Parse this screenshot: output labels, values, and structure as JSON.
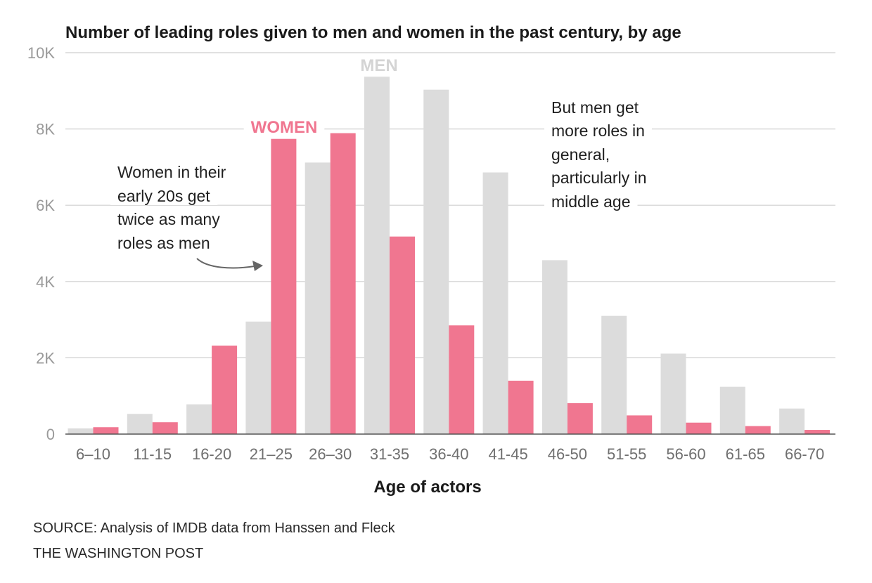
{
  "colors": {
    "men": "#dcdcdc",
    "women": "#f07690",
    "grid": "#cfcfcf",
    "men_label": "#d4d4d4",
    "women_label": "#f07690"
  },
  "footer": {
    "source": "SOURCE: Analysis of IMDB data from Hanssen and Fleck",
    "credit": "THE WASHINGTON POST"
  },
  "chart_data": {
    "type": "bar",
    "title": "Number of leading roles given to men and women in the past century, by age",
    "xlabel": "Age of actors",
    "ylabel": "",
    "ylim": [
      0,
      10000
    ],
    "yticks": [
      {
        "value": 0,
        "label": "0"
      },
      {
        "value": 2000,
        "label": "2K"
      },
      {
        "value": 4000,
        "label": "4K"
      },
      {
        "value": 6000,
        "label": "6K"
      },
      {
        "value": 8000,
        "label": "8K"
      },
      {
        "value": 10000,
        "label": "10K"
      }
    ],
    "grid": true,
    "categories": [
      "6–10",
      "11-15",
      "16-20",
      "21–25",
      "26–30",
      "31-35",
      "36-40",
      "41-45",
      "46-50",
      "51-55",
      "56-60",
      "61-65",
      "66-70"
    ],
    "series": [
      {
        "name": "MEN",
        "values": [
          150,
          530,
          780,
          2950,
          7120,
          9370,
          9030,
          6860,
          4560,
          3100,
          2110,
          1240,
          670
        ]
      },
      {
        "name": "WOMEN",
        "values": [
          180,
          310,
          2320,
          7740,
          7890,
          5180,
          2850,
          1400,
          810,
          490,
          300,
          210,
          110
        ]
      }
    ],
    "annotations": [
      {
        "id": "women-note",
        "lines": [
          "Women in their",
          "early 20s get",
          "twice as many",
          "roles as men"
        ]
      },
      {
        "id": "men-note",
        "lines": [
          "But men get",
          "more roles in",
          "general,",
          "particularly in",
          "middle age"
        ]
      }
    ]
  }
}
